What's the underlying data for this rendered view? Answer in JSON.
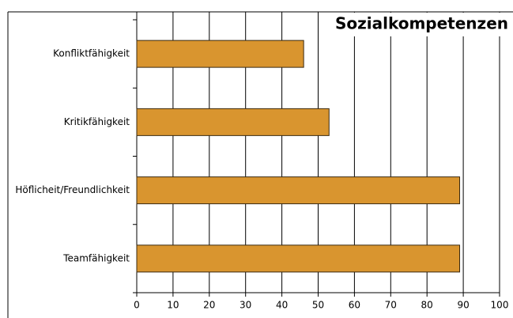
{
  "chart_data": {
    "type": "bar",
    "orientation": "horizontal",
    "title": "Sozialkompetenzen",
    "categories": [
      "Konfliktfähigkeit",
      "Kritikfähigkeit",
      "Höflicheit/Freundlichkeit",
      "Teamfähigkeit"
    ],
    "values": [
      46,
      53,
      89,
      89
    ],
    "color": "#d9952f",
    "xlim": [
      0,
      100
    ],
    "xticks": [
      0,
      10,
      20,
      30,
      40,
      50,
      60,
      70,
      80,
      90,
      100
    ],
    "grid": true
  }
}
